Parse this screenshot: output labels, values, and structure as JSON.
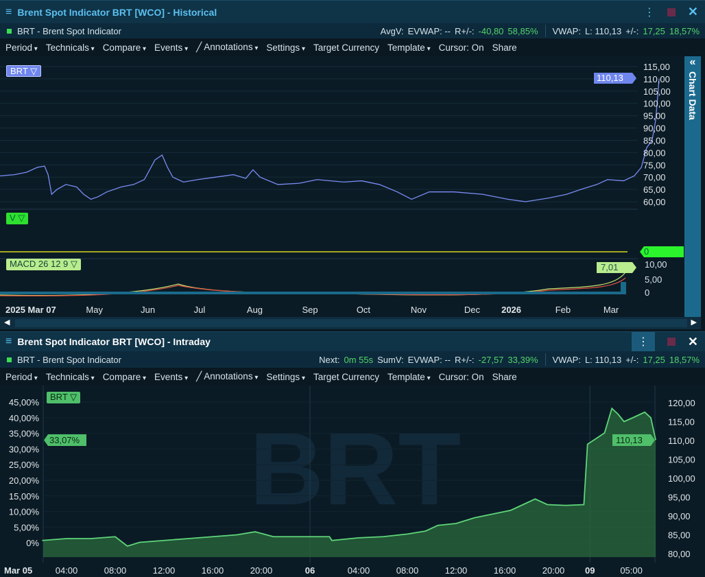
{
  "historical": {
    "title": "Brent Spot Indicator BRT [WCO] - Historical",
    "instrument": "BRT - Brent Spot Indicator",
    "stats": {
      "avgv": "AvgV:",
      "evwap": "EVWAP: --",
      "r_label": "R+/-:",
      "r_abs": "-40,80",
      "r_pct": "58,85%",
      "vwap": "VWAP:",
      "last": "L: 110,13",
      "chg_label": "+/-:",
      "chg_abs": "17,25",
      "chg_pct": "18,57%"
    },
    "toolbar": [
      "Period",
      "Technicals",
      "Compare",
      "Events",
      "Annotations",
      "Settings",
      "Target Currency",
      "Template",
      "Cursor: On",
      "Share"
    ],
    "side_panel": "Chart Data",
    "legend_price": "BRT",
    "legend_volume": "V",
    "legend_macd": "MACD 26 12 9",
    "price_tag": "110,13",
    "volume_tag": "0",
    "macd_tag": "7,01",
    "macd_ticks": [
      "10,00",
      "5,00",
      "0"
    ]
  },
  "intraday": {
    "title": "Brent Spot Indicator BRT [WCO] - Intraday",
    "instrument": "BRT - Brent Spot Indicator",
    "stats": {
      "next_label": "Next:",
      "next": "0m 55s",
      "sumv": "SumV:",
      "evwap": "EVWAP: --",
      "r_label": "R+/-:",
      "r_abs": "-27,57",
      "r_pct": "33,39%",
      "vwap": "VWAP:",
      "last": "L: 110,13",
      "chg_label": "+/-:",
      "chg_abs": "17,25",
      "chg_pct": "18,57%"
    },
    "toolbar": [
      "Period",
      "Technicals",
      "Compare",
      "Events",
      "Annotations",
      "Settings",
      "Target Currency",
      "Template",
      "Cursor: On",
      "Share"
    ],
    "legend_price": "BRT",
    "watermark": "BRT",
    "price_tag": "110,13",
    "pct_tag": "33,07%"
  },
  "chart_data": [
    {
      "type": "line",
      "title": "Brent Spot Indicator BRT - Historical",
      "ylim": [
        60,
        115
      ],
      "yticks": [
        "115,00",
        "110,00",
        "105,00",
        "100,00",
        "95,00",
        "90,00",
        "85,00",
        "80,00",
        "75,00",
        "70,00",
        "65,00",
        "60,00"
      ],
      "xticks": [
        {
          "d": 0,
          "label": "2025 Mar 07"
        },
        {
          "d": 30,
          "label": "May"
        },
        {
          "d": 60,
          "label": "Jun"
        },
        {
          "d": 89,
          "label": "Jul"
        },
        {
          "d": 120,
          "label": "Aug"
        },
        {
          "d": 151,
          "label": "Sep"
        },
        {
          "d": 181,
          "label": "Oct"
        },
        {
          "d": 212,
          "label": "Nov"
        },
        {
          "d": 242,
          "label": "Dec"
        },
        {
          "d": 264,
          "label": "2026"
        },
        {
          "d": 293,
          "label": "Feb"
        },
        {
          "d": 320,
          "label": "Mar"
        }
      ],
      "xlim": [
        -23,
        335
      ],
      "series": [
        {
          "name": "BRT",
          "color": "#7b8cf5",
          "points": [
            [
              -23,
              70.5
            ],
            [
              -15,
              71
            ],
            [
              -8,
              72
            ],
            [
              -2,
              74
            ],
            [
              2,
              74.5
            ],
            [
              4,
              71
            ],
            [
              6,
              63
            ],
            [
              9,
              65
            ],
            [
              14,
              67
            ],
            [
              20,
              66
            ],
            [
              24,
              63
            ],
            [
              28,
              61
            ],
            [
              32,
              62
            ],
            [
              37,
              64
            ],
            [
              45,
              66
            ],
            [
              52,
              67
            ],
            [
              58,
              69
            ],
            [
              61,
              73
            ],
            [
              64,
              77
            ],
            [
              68,
              79
            ],
            [
              71,
              74
            ],
            [
              74,
              70
            ],
            [
              80,
              68
            ],
            [
              88,
              69
            ],
            [
              98,
              70
            ],
            [
              108,
              71
            ],
            [
              115,
              69.5
            ],
            [
              119,
              73
            ],
            [
              123,
              70
            ],
            [
              133,
              67
            ],
            [
              145,
              67.5
            ],
            [
              155,
              69
            ],
            [
              170,
              68
            ],
            [
              180,
              68.5
            ],
            [
              190,
              67
            ],
            [
              200,
              64
            ],
            [
              208,
              61
            ],
            [
              218,
              64
            ],
            [
              232,
              64
            ],
            [
              248,
              63
            ],
            [
              262,
              61
            ],
            [
              272,
              60
            ],
            [
              285,
              61.5
            ],
            [
              295,
              63
            ],
            [
              303,
              65
            ],
            [
              312,
              67
            ],
            [
              318,
              69
            ],
            [
              327,
              68.5
            ],
            [
              333,
              70.5
            ],
            [
              337,
              74
            ],
            [
              340,
              82
            ],
            [
              343,
              85
            ],
            [
              345,
              93
            ],
            [
              347,
              110.13
            ]
          ]
        }
      ]
    },
    {
      "type": "line",
      "title": "Brent Spot Indicator BRT - Intraday",
      "ylim": [
        80,
        120
      ],
      "yticks": [
        "120,00",
        "115,00",
        "110,00",
        "105,00",
        "100,00",
        "95,00",
        "90,00",
        "85,00",
        "80,00"
      ],
      "pct_ticks": [
        "45,00%",
        "40,00%",
        "35,00%",
        "30,00%",
        "25,00%",
        "20,00%",
        "15,00%",
        "10,00%",
        "5,00%",
        "0%"
      ],
      "xticks": [
        {
          "h": 0,
          "label": "Mar 05"
        },
        {
          "h": 4,
          "label": "04:00"
        },
        {
          "h": 8,
          "label": "08:00"
        },
        {
          "h": 12,
          "label": "12:00"
        },
        {
          "h": 16,
          "label": "16:00"
        },
        {
          "h": 20,
          "label": "20:00"
        },
        {
          "h": 24,
          "label": "06"
        },
        {
          "h": 28,
          "label": "04:00"
        },
        {
          "h": 32,
          "label": "08:00"
        },
        {
          "h": 36,
          "label": "12:00"
        },
        {
          "h": 40,
          "label": "16:00"
        },
        {
          "h": 44,
          "label": "20:00"
        },
        {
          "h": 47,
          "label": "09"
        },
        {
          "h": 50.4,
          "label": "05:00"
        }
      ],
      "xlim": [
        -1.5,
        53
      ],
      "series": [
        {
          "name": "BRT",
          "color": "#4fbf6a",
          "points": [
            [
              2,
              83.5
            ],
            [
              4,
              84
            ],
            [
              6,
              84
            ],
            [
              8,
              84.5
            ],
            [
              9,
              82
            ],
            [
              10,
              83
            ],
            [
              12,
              83.5
            ],
            [
              14,
              84
            ],
            [
              16,
              84.5
            ],
            [
              18,
              85
            ],
            [
              19.5,
              85.8
            ],
            [
              21,
              84.5
            ],
            [
              22.5,
              84.5
            ],
            [
              24,
              84.5
            ],
            [
              25.6,
              84.5
            ],
            [
              25.8,
              83.5
            ],
            [
              28,
              84.2
            ],
            [
              30,
              84.5
            ],
            [
              32,
              85.2
            ],
            [
              33.5,
              86
            ],
            [
              34.5,
              87.5
            ],
            [
              36,
              88
            ],
            [
              37.5,
              89.5
            ],
            [
              39,
              90.5
            ],
            [
              40.5,
              91.5
            ],
            [
              41.5,
              93
            ],
            [
              42.5,
              94.5
            ],
            [
              43.5,
              93
            ],
            [
              45,
              92.8
            ],
            [
              46.5,
              93
            ],
            [
              46.8,
              109
            ],
            [
              47.5,
              110.5
            ],
            [
              48.2,
              112
            ],
            [
              48.8,
              118.5
            ],
            [
              49.3,
              117
            ],
            [
              49.8,
              115
            ],
            [
              50.5,
              116
            ],
            [
              51.5,
              117.5
            ],
            [
              52,
              116
            ],
            [
              52.4,
              110.13
            ]
          ]
        }
      ]
    }
  ]
}
